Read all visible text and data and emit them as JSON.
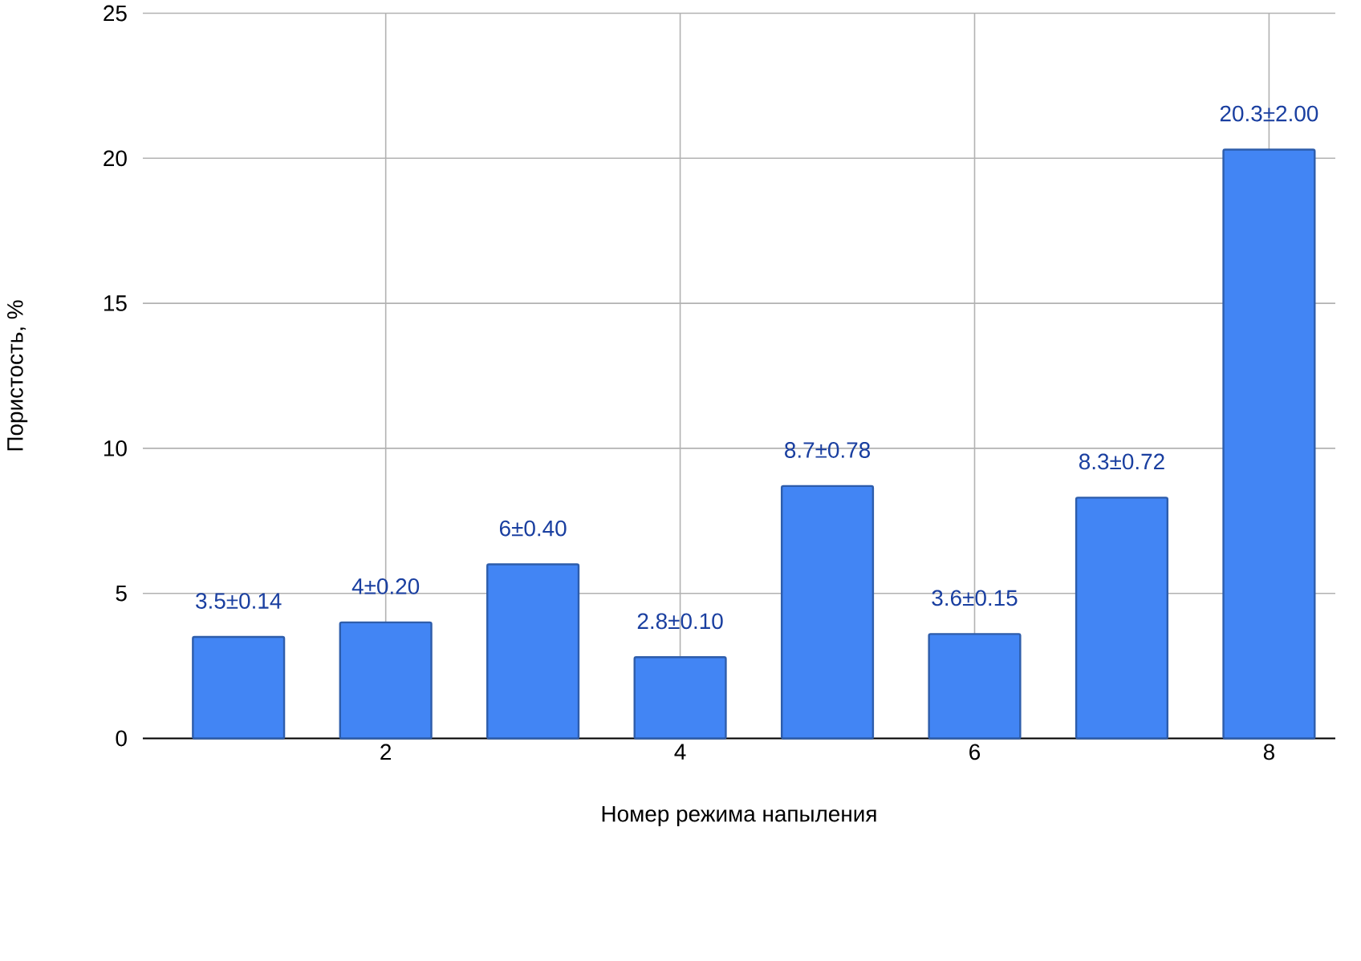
{
  "chart_data": {
    "type": "bar",
    "xlabel": "Номер режима напыления",
    "ylabel": "Пористость, %",
    "x": [
      1,
      2,
      3,
      4,
      5,
      6,
      7,
      8
    ],
    "values": [
      3.5,
      4,
      6,
      2.8,
      8.7,
      3.6,
      8.3,
      20.3
    ],
    "value_labels": [
      "3.5±0.14",
      "4±0.20",
      "6±0.40",
      "2.8±0.10",
      "8.7±0.78",
      "3.6±0.15",
      "8.3±0.72",
      "20.3±2.00"
    ],
    "color": "#4285f4",
    "xlim": [
      0.35,
      8.45
    ],
    "xticks": [
      2,
      4,
      6,
      8
    ],
    "ylim": [
      0,
      25
    ],
    "yticks": [
      0,
      5,
      10,
      15,
      20,
      25
    ],
    "grid": true
  }
}
